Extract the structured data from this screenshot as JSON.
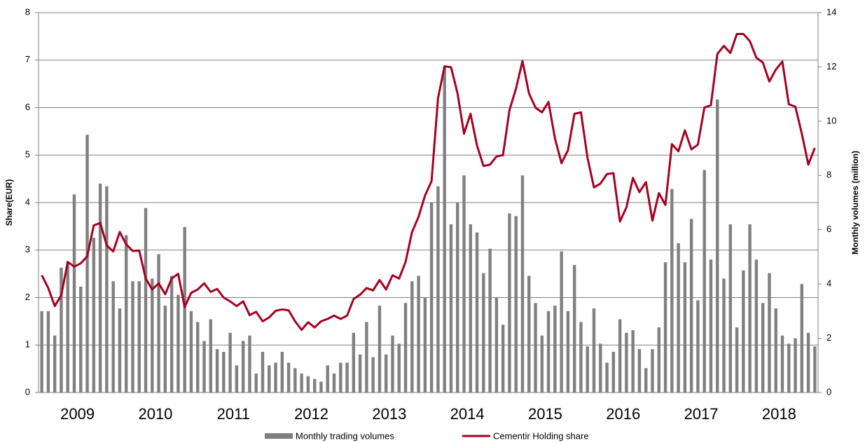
{
  "chart_data": {
    "type": "bar-line",
    "ylabel": "Share(EUR)",
    "y2label": "Monthly volumes (million)",
    "categories": [
      null,
      null,
      null,
      null,
      null,
      "2009",
      null,
      null,
      null,
      null,
      null,
      null,
      null,
      null,
      null,
      null,
      null,
      "2010",
      null,
      null,
      null,
      null,
      null,
      null,
      null,
      null,
      null,
      null,
      null,
      "2011",
      null,
      null,
      null,
      null,
      null,
      null,
      null,
      null,
      null,
      null,
      null,
      "2012",
      null,
      null,
      null,
      null,
      null,
      null,
      null,
      null,
      null,
      null,
      null,
      "2013",
      null,
      null,
      null,
      null,
      null,
      null,
      null,
      null,
      null,
      null,
      null,
      "2014",
      null,
      null,
      null,
      null,
      null,
      null,
      null,
      null,
      null,
      null,
      null,
      "2015",
      null,
      null,
      null,
      null,
      null,
      null,
      null,
      null,
      null,
      null,
      null,
      "2016",
      null,
      null,
      null,
      null,
      null,
      null,
      null,
      null,
      null,
      null,
      null,
      "2017",
      null,
      null,
      null,
      null,
      null,
      null,
      null,
      null,
      null,
      null,
      null,
      "2018",
      null,
      null,
      null,
      null,
      null,
      null
    ],
    "series": [
      {
        "name": "Monthly trading volumes",
        "type": "bar",
        "axis": "y2",
        "color": "#808080",
        "values": [
          3.0,
          3.0,
          2.1,
          4.6,
          4.8,
          7.3,
          3.9,
          9.5,
          5.7,
          7.7,
          7.6,
          4.1,
          3.1,
          5.8,
          4.1,
          4.1,
          6.8,
          4.2,
          5.1,
          3.2,
          4.3,
          3.6,
          6.1,
          3.0,
          2.6,
          1.9,
          2.7,
          1.6,
          1.5,
          2.2,
          1.0,
          1.9,
          2.1,
          0.7,
          1.5,
          1.0,
          1.1,
          1.5,
          1.1,
          0.9,
          0.7,
          0.6,
          0.5,
          0.4,
          1.0,
          0.7,
          1.1,
          1.1,
          2.2,
          1.4,
          2.6,
          1.3,
          3.2,
          1.4,
          2.1,
          1.8,
          3.3,
          4.1,
          4.3,
          3.5,
          7.0,
          7.6,
          12.0,
          6.2,
          7.0,
          8.0,
          6.2,
          5.9,
          4.4,
          5.3,
          3.5,
          2.5,
          6.6,
          6.5,
          8.0,
          4.3,
          3.3,
          2.1,
          3.0,
          3.2,
          5.2,
          3.0,
          4.7,
          2.6,
          1.7,
          3.1,
          1.8,
          1.1,
          1.5,
          2.7,
          2.2,
          2.3,
          1.6,
          0.9,
          1.6,
          2.4,
          4.8,
          7.5,
          5.5,
          4.8,
          6.4,
          3.4,
          8.2,
          4.9,
          10.8,
          4.2,
          6.2,
          2.4,
          4.5,
          6.2,
          4.9,
          3.3,
          4.4,
          3.1,
          2.1,
          1.8,
          2.0,
          4.0,
          2.2,
          1.7
        ]
      },
      {
        "name": "Cementir Holding share",
        "type": "line",
        "color": "#a50021",
        "values": [
          2.47,
          2.2,
          1.82,
          2.05,
          2.75,
          2.65,
          2.72,
          2.87,
          3.52,
          3.57,
          3.1,
          2.97,
          3.38,
          3.12,
          2.98,
          2.99,
          2.4,
          2.17,
          2.3,
          2.07,
          2.4,
          2.5,
          1.8,
          2.1,
          2.17,
          2.3,
          2.12,
          2.18,
          2.0,
          1.92,
          1.82,
          1.92,
          1.63,
          1.7,
          1.5,
          1.58,
          1.72,
          1.75,
          1.73,
          1.5,
          1.32,
          1.48,
          1.37,
          1.5,
          1.55,
          1.62,
          1.55,
          1.62,
          1.97,
          2.06,
          2.2,
          2.15,
          2.37,
          2.17,
          2.47,
          2.4,
          2.75,
          3.38,
          3.7,
          4.15,
          4.45,
          6.2,
          6.87,
          6.85,
          6.3,
          5.45,
          5.87,
          5.2,
          4.77,
          4.8,
          4.97,
          5.0,
          5.95,
          6.4,
          6.98,
          6.3,
          6.0,
          5.9,
          6.12,
          5.35,
          4.83,
          5.1,
          5.87,
          5.9,
          4.95,
          4.32,
          4.4,
          4.6,
          4.62,
          3.6,
          3.9,
          4.52,
          4.22,
          4.43,
          3.62,
          4.2,
          3.95,
          5.23,
          5.08,
          5.52,
          5.12,
          5.22,
          6.0,
          6.05,
          7.13,
          7.3,
          7.15,
          7.55,
          7.55,
          7.4,
          7.05,
          6.95,
          6.55,
          6.8,
          6.97,
          6.07,
          6.02,
          5.45,
          4.8,
          5.15
        ]
      }
    ],
    "ylim": [
      0,
      8
    ],
    "yticks": [
      0,
      1,
      2,
      3,
      4,
      5,
      6,
      7,
      8
    ],
    "y2lim": [
      0,
      14
    ],
    "y2ticks": [
      0,
      2,
      4,
      6,
      8,
      10,
      12,
      14
    ],
    "grid": true,
    "legend": "bottom"
  }
}
